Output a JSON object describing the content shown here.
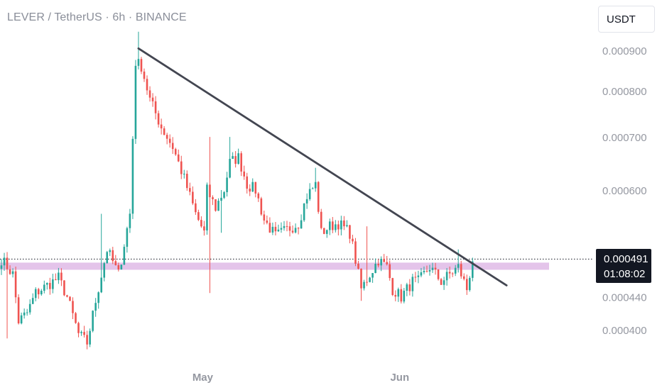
{
  "header": {
    "title": "LEVER / TetherUS · 6h · BINANCE",
    "unit": "USDT"
  },
  "price_tag": {
    "price": "0.000491",
    "countdown": "01:08:02"
  },
  "colors": {
    "up": "#26a69a",
    "down": "#ef5350",
    "trendline": "#434651",
    "support_zone": "#ce93d8",
    "axis_text": "#9598a1"
  },
  "chart_data": {
    "type": "candlestick",
    "title": "LEVER / TetherUS · 6h · BINANCE",
    "symbol": "LEVER/USDT",
    "timeframe": "6h",
    "exchange": "BINANCE",
    "y_scale": "log",
    "ylim": [
      0.00036,
      0.00096
    ],
    "y_ticks": [
      "0.000400",
      "0.000440",
      "0.000600",
      "0.000700",
      "0.000800",
      "0.000900"
    ],
    "x_ticks": [
      "May",
      "Jun"
    ],
    "x_tick_bars": [
      71,
      140
    ],
    "bar_count": 166,
    "last_price": "0.000491",
    "countdown": "01:08:02",
    "grid": false,
    "series": [
      {
        "type": "candles",
        "volatility": 0.018,
        "seed": 7,
        "anchors": [
          [
            0,
            0.000491
          ],
          [
            4,
            0.00047
          ],
          [
            6,
            0.00041
          ],
          [
            9,
            0.00042
          ],
          [
            12,
            0.000445
          ],
          [
            16,
            0.000455
          ],
          [
            20,
            0.000465
          ],
          [
            23,
            0.00044
          ],
          [
            27,
            0.000395
          ],
          [
            30,
            0.000385
          ],
          [
            33,
            0.000435
          ],
          [
            37,
            0.000505
          ],
          [
            41,
            0.00047
          ],
          [
            45,
            0.00056
          ],
          [
            47,
            0.00087
          ],
          [
            49,
            0.00086
          ],
          [
            52,
            0.00078
          ],
          [
            56,
            0.00072
          ],
          [
            60,
            0.00068
          ],
          [
            64,
            0.00062
          ],
          [
            68,
            0.00056
          ],
          [
            71,
            0.00053
          ],
          [
            72,
            0.0006
          ],
          [
            75,
            0.00057
          ],
          [
            78,
            0.0006
          ],
          [
            80,
            0.00065
          ],
          [
            83,
            0.00066
          ],
          [
            86,
            0.00061
          ],
          [
            89,
            0.0006
          ],
          [
            92,
            0.00055
          ],
          [
            96,
            0.000525
          ],
          [
            100,
            0.000535
          ],
          [
            104,
            0.000545
          ],
          [
            107,
            0.00059
          ],
          [
            110,
            0.00061
          ],
          [
            112,
            0.00053
          ],
          [
            115,
            0.00054
          ],
          [
            118,
            0.000545
          ],
          [
            122,
            0.00053
          ],
          [
            124,
            0.00049
          ],
          [
            126,
            0.00045
          ],
          [
            129,
            0.00047
          ],
          [
            132,
            0.00049
          ],
          [
            135,
            0.00048
          ],
          [
            137,
            0.00045
          ],
          [
            140,
            0.00044
          ],
          [
            144,
            0.00046
          ],
          [
            146,
            0.00046
          ],
          [
            148,
            0.00047
          ],
          [
            150,
            0.00048
          ],
          [
            152,
            0.00047
          ],
          [
            154,
            0.00046
          ],
          [
            157,
            0.00047
          ],
          [
            160,
            0.00048
          ],
          [
            163,
            0.00045
          ],
          [
            165,
            0.000491
          ]
        ],
        "wicks": [
          [
            1,
            0.0005,
            null
          ],
          [
            2,
            null,
            0.00039
          ],
          [
            35,
            0.00056,
            null
          ],
          [
            48,
            0.00095,
            null
          ],
          [
            73,
            0.0007,
            0.000445
          ],
          [
            77,
            0.0006,
            0.00053
          ],
          [
            80,
            0.0007,
            null
          ],
          [
            110,
            0.00064,
            null
          ],
          [
            126,
            null,
            0.000435
          ],
          [
            128,
            0.00054,
            null
          ],
          [
            160,
            0.000505,
            null
          ]
        ]
      },
      {
        "type": "trendline",
        "name": "",
        "points": [
          [
            0,
            0.000905
          ],
          [
            1,
            0.000478
          ]
        ],
        "x_bars": [
          47,
          158
        ]
      },
      {
        "type": "zone",
        "name": "",
        "range": [
          0.000476,
          0.000486
        ]
      },
      {
        "type": "current_price_line",
        "value": 0.000491
      }
    ]
  }
}
